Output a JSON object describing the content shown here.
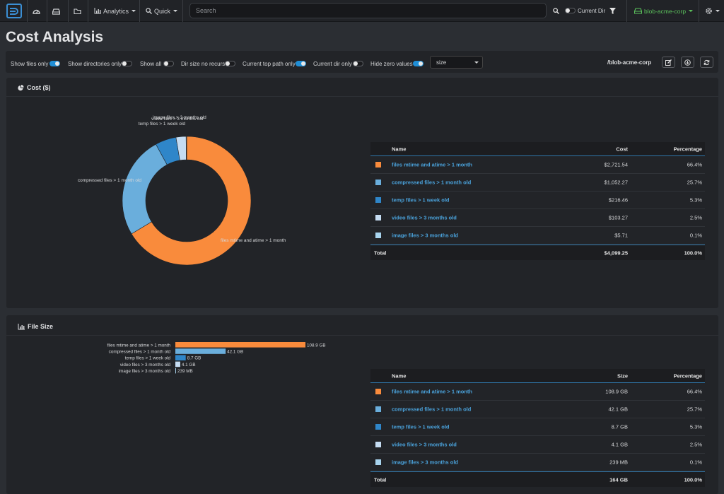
{
  "nav": {
    "logo": "D",
    "analytics_label": "Analytics",
    "quick_label": "Quick",
    "search_placeholder": "Search",
    "current_dir_label": "Current Dir",
    "account_label": "blob-acme-corp"
  },
  "page": {
    "title": "Cost Analysis"
  },
  "options": {
    "toggles": [
      {
        "label": "Show files only",
        "on": true
      },
      {
        "label": "Show directories only",
        "on": false
      },
      {
        "label": "Show all",
        "on": false
      },
      {
        "label": "Dir size no recurs",
        "on": false
      },
      {
        "label": "Current top path only",
        "on": true
      },
      {
        "label": "Current dir only",
        "on": false
      },
      {
        "label": "Hide zero values",
        "on": true
      }
    ],
    "sort_value": "size",
    "path": "/blob-acme-corp"
  },
  "cost_panel": {
    "title": "Cost ($)",
    "columns": [
      "Name",
      "Cost",
      "Percentage"
    ],
    "rows": [
      {
        "name": "files mtime and atime > 1 month",
        "value": "$2,721.54",
        "pct": "66.4%",
        "color": "#f98b3c"
      },
      {
        "name": "compressed files > 1 month old",
        "value": "$1,052.27",
        "pct": "25.7%",
        "color": "#6aaedc"
      },
      {
        "name": "temp files > 1 week old",
        "value": "$216.46",
        "pct": "5.3%",
        "color": "#2f86c9"
      },
      {
        "name": "video files > 3 months old",
        "value": "$103.27",
        "pct": "2.5%",
        "color": "#c5dcf2"
      },
      {
        "name": "image files > 3 months old",
        "value": "$5.71",
        "pct": "0.1%",
        "color": "#a8d4ee"
      }
    ],
    "total": {
      "label": "Total",
      "value": "$4,099.25",
      "pct": "100.0%"
    }
  },
  "size_panel": {
    "title": "File Size",
    "columns": [
      "Name",
      "Size",
      "Percentage"
    ],
    "rows": [
      {
        "name": "files mtime and atime > 1 month",
        "value": "108.9 GB",
        "pct": "66.4%",
        "color": "#f98b3c"
      },
      {
        "name": "compressed files > 1 month old",
        "value": "42.1 GB",
        "pct": "25.7%",
        "color": "#6aaedc"
      },
      {
        "name": "temp files > 1 week old",
        "value": "8.7 GB",
        "pct": "5.3%",
        "color": "#2f86c9"
      },
      {
        "name": "video files > 3 months old",
        "value": "4.1 GB",
        "pct": "2.5%",
        "color": "#c5dcf2"
      },
      {
        "name": "image files > 3 months old",
        "value": "239 MB",
        "pct": "0.1%",
        "color": "#a8d4ee"
      }
    ],
    "total": {
      "label": "Total",
      "value": "164 GB",
      "pct": "100.0%"
    }
  },
  "chart_data": [
    {
      "type": "pie",
      "title": "Cost ($)",
      "categories": [
        "files mtime and atime > 1 month",
        "compressed files > 1 month old",
        "temp files > 1 week old",
        "video files > 3 months old",
        "image files > 3 months old"
      ],
      "values": [
        2721.54,
        1052.27,
        216.46,
        103.27,
        5.71
      ],
      "colors": [
        "#f98b3c",
        "#6aaedc",
        "#2f86c9",
        "#c5dcf2",
        "#a8d4ee"
      ],
      "donut": true
    },
    {
      "type": "bar",
      "orientation": "horizontal",
      "title": "File Size",
      "categories": [
        "files mtime and atime > 1 month",
        "compressed files > 1 month old",
        "temp files > 1 week old",
        "video files > 3 months old",
        "image files > 3 months old"
      ],
      "values": [
        108.9,
        42.1,
        8.7,
        4.1,
        0.239
      ],
      "value_labels": [
        "108.9 GB",
        "42.1 GB",
        "8.7 GB",
        "4.1 GB",
        "239 MB"
      ],
      "unit": "GB",
      "colors": [
        "#f98b3c",
        "#6aaedc",
        "#2f86c9",
        "#c5dcf2",
        "#a8d4ee"
      ]
    }
  ]
}
